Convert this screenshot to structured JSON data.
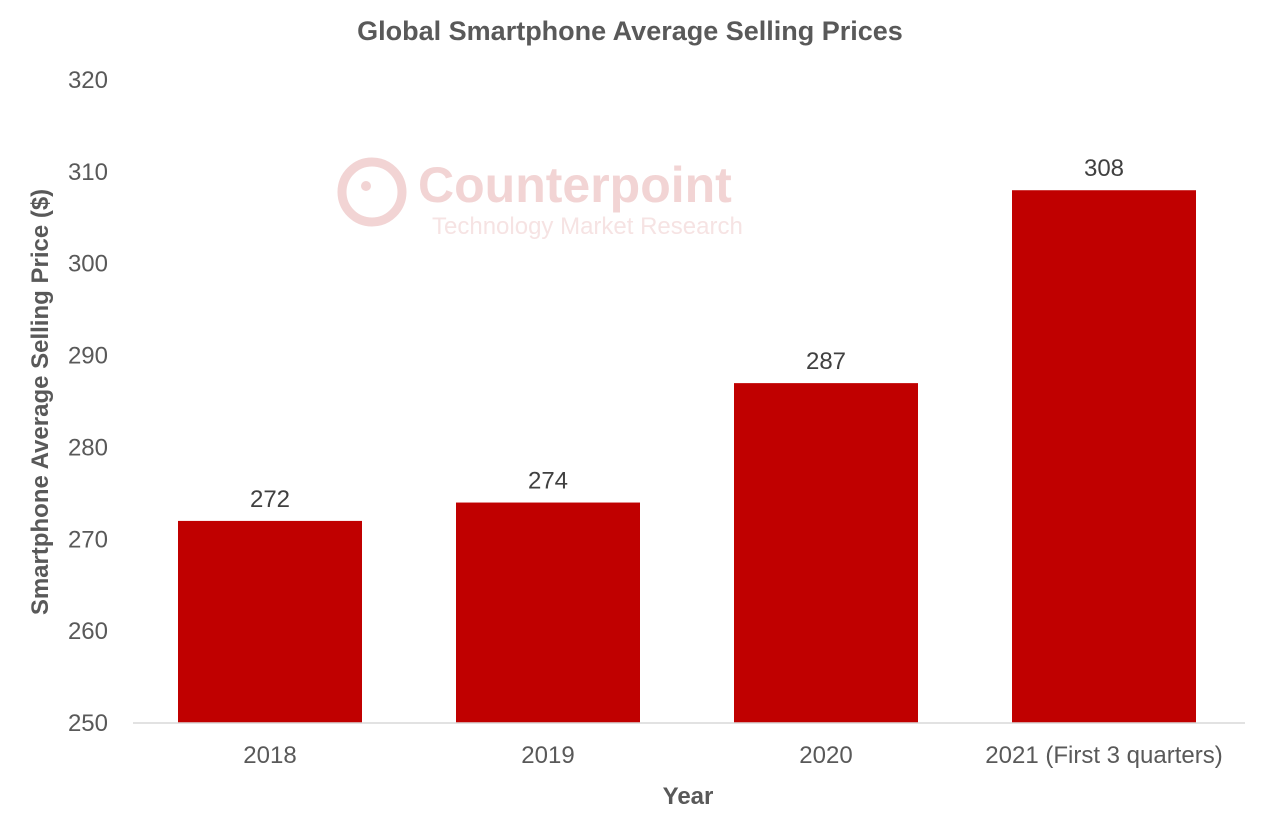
{
  "chart_data": {
    "type": "bar",
    "title": "Global Smartphone Average Selling Prices",
    "xlabel": "Year",
    "ylabel": "Smartphone Average Selling Price ($)",
    "categories": [
      "2018",
      "2019",
      "2020",
      "2021 (First 3 quarters)"
    ],
    "values": [
      272,
      274,
      287,
      308
    ],
    "ylim": [
      250,
      320
    ],
    "yticks": [
      250,
      260,
      270,
      280,
      290,
      300,
      310,
      320
    ],
    "grid": false,
    "bar_color": "#c00000",
    "data_labels": true
  },
  "watermark": {
    "brand": "Counterpoint",
    "tagline": "Technology Market Research"
  }
}
